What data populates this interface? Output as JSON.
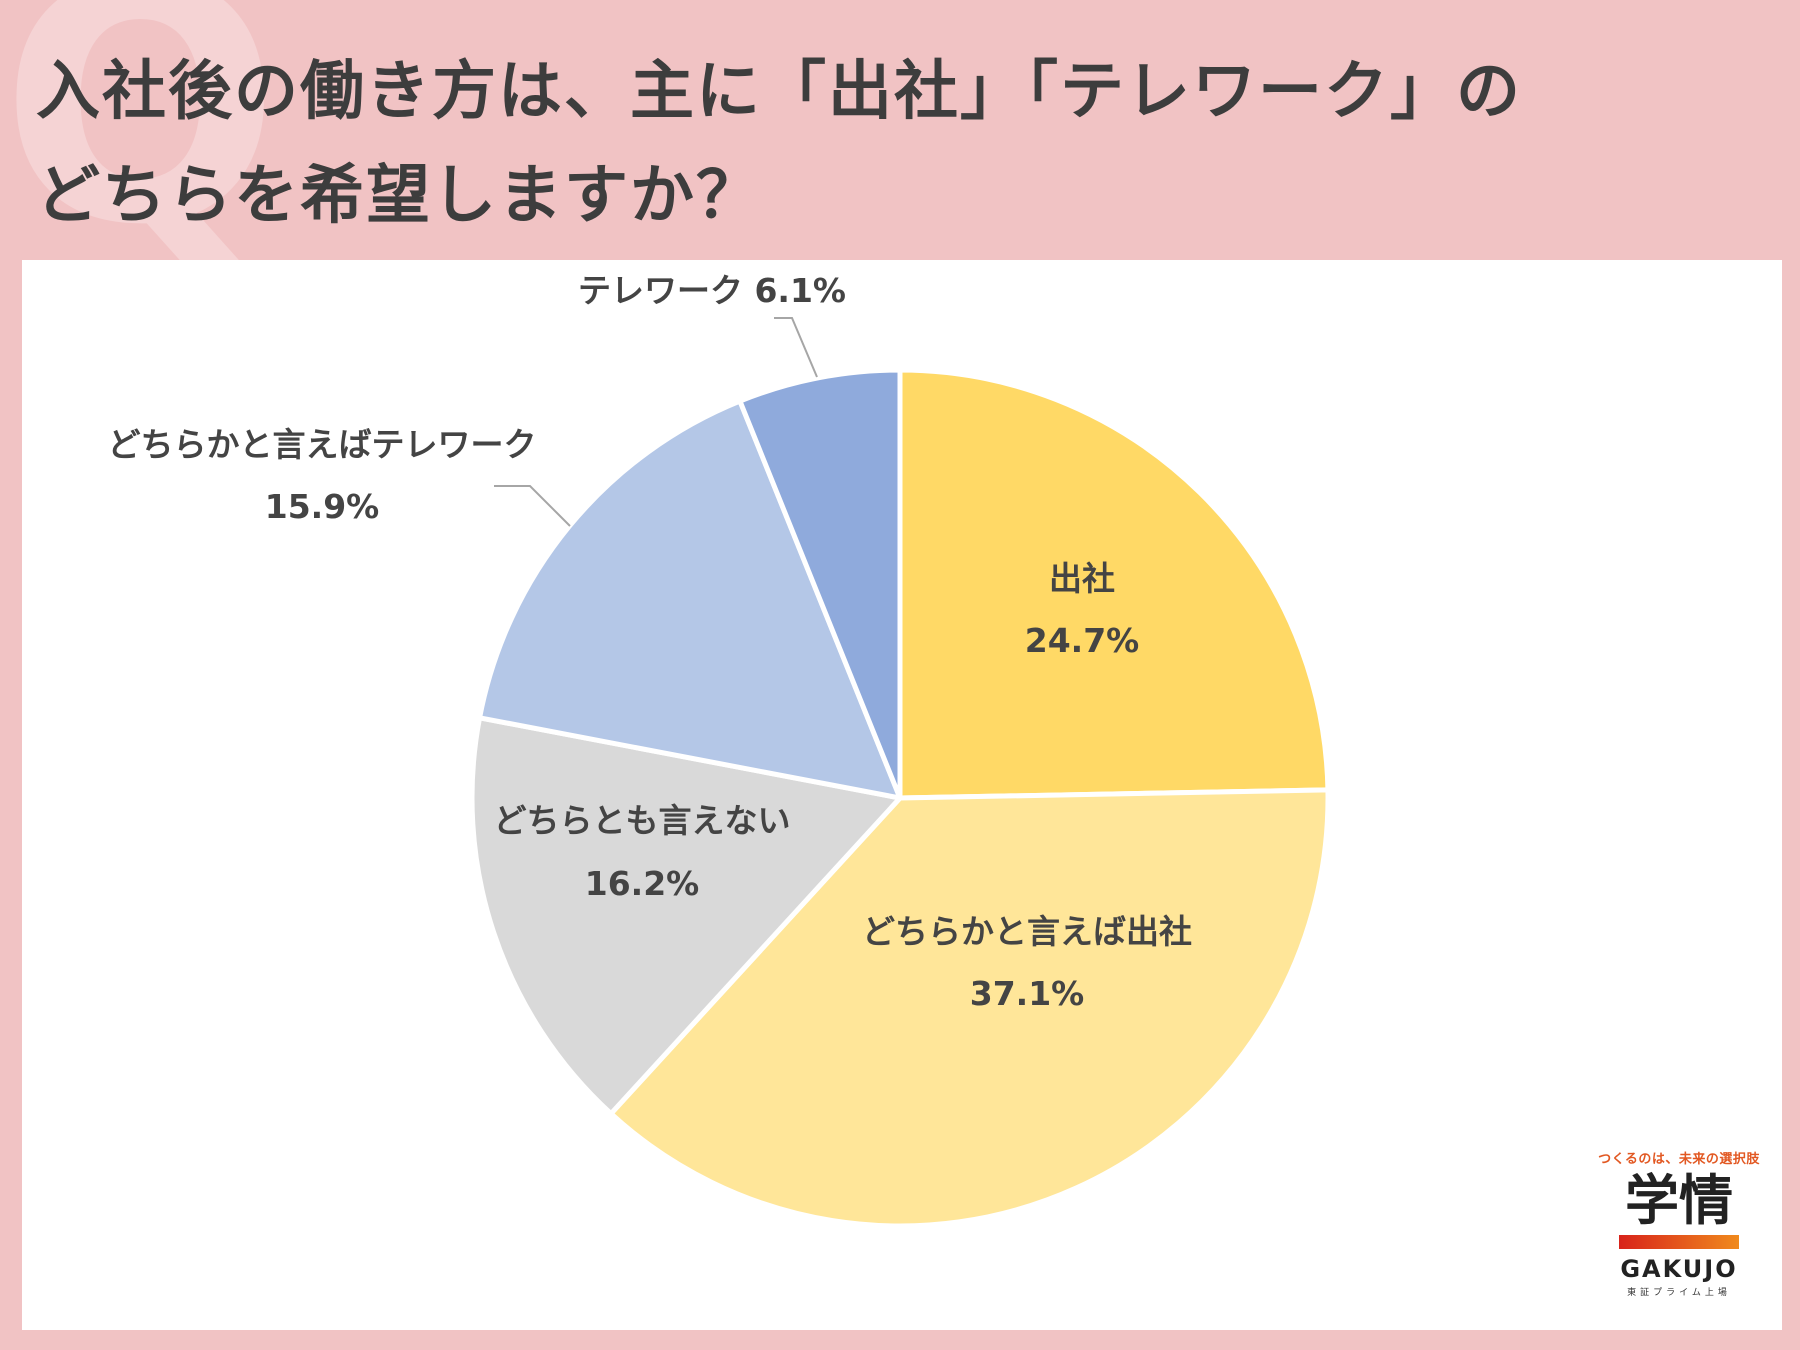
{
  "page": {
    "title_line1": "入社後の働き方は、主に「出社」「テレワーク」の",
    "title_line2": "どちらを希望しますか？",
    "background_color": "#f1c3c4",
    "watermark_glyph": "Q"
  },
  "chart_data": {
    "type": "pie",
    "title": "入社後の働き方は、主に「出社」「テレワーク」のどちらを希望しますか？",
    "start_angle_deg": 0,
    "direction": "clockwise",
    "slices": [
      {
        "label": "出社",
        "value": 24.7,
        "value_label": "24.7%",
        "color": "#ffd966"
      },
      {
        "label": "どちらかと言えば出社",
        "value": 37.1,
        "value_label": "37.1%",
        "color": "#ffe699"
      },
      {
        "label": "どちらとも言えない",
        "value": 16.2,
        "value_label": "16.2%",
        "color": "#d9d9d9"
      },
      {
        "label": "どちらかと言えばテレワーク",
        "value": 15.9,
        "value_label": "15.9%",
        "color": "#b4c7e7"
      },
      {
        "label": "テレワーク",
        "value": 6.1,
        "value_label": "6.1%",
        "color": "#8faadc"
      }
    ]
  },
  "logo": {
    "tagline": "つくるのは、未来の選択肢",
    "kanji": "学情",
    "name": "GAKUJO",
    "subtext": "東証プライム上場"
  }
}
